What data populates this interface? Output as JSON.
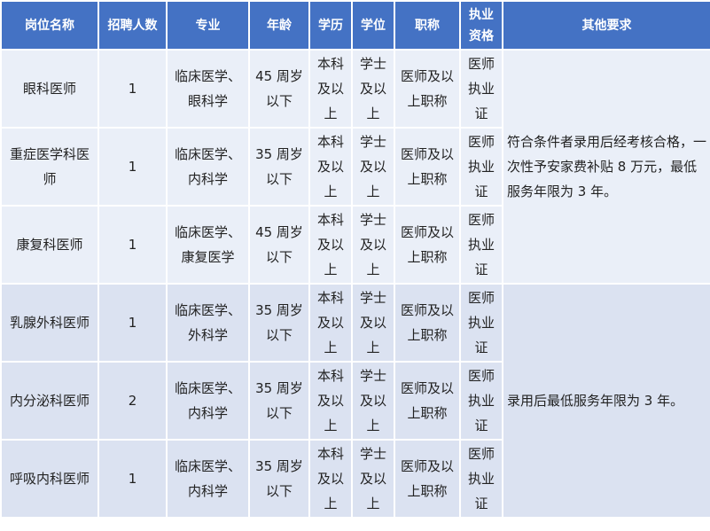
{
  "header_color": "#4472c4",
  "columns": [
    "岗位名称",
    "招聘人数",
    "专业",
    "年龄",
    "学历",
    "学位",
    "职称",
    "执业资格",
    "其他要求"
  ],
  "rows": [
    {
      "position": "眼科医师",
      "count": "1",
      "major": "临床医学、眼科学",
      "age": "45 周岁以下",
      "education": "本科及以上",
      "degree": "学士及以上",
      "title": "医师及以上职称",
      "qualification": "医师执业证"
    },
    {
      "position": "重症医学科医师",
      "count": "1",
      "major": "临床医学、内科学",
      "age": "35 周岁以下",
      "education": "本科及以上",
      "degree": "学士及以上",
      "title": "医师及以上职称",
      "qualification": "医师执业证"
    },
    {
      "position": "康复科医师",
      "count": "1",
      "major": "临床医学、康复医学",
      "age": "45 周岁以下",
      "education": "本科及以上",
      "degree": "学士及以上",
      "title": "医师及以上职称",
      "qualification": "医师执业证"
    },
    {
      "position": "乳腺外科医师",
      "count": "1",
      "major": "临床医学、外科学",
      "age": "35 周岁以下",
      "education": "本科及以上",
      "degree": "学士及以上",
      "title": "医师及以上职称",
      "qualification": "医师执业证"
    },
    {
      "position": "内分泌科医师",
      "count": "2",
      "major": "临床医学、内科学",
      "age": "35 周岁以下",
      "education": "本科及以上",
      "degree": "学士及以上",
      "title": "医师及以上职称",
      "qualification": "医师执业证"
    },
    {
      "position": "呼吸内科医师",
      "count": "1",
      "major": "临床医学、内科学",
      "age": "35 周岁以下",
      "education": "本科及以上",
      "degree": "学士及以上",
      "title": "医师及以上职称",
      "qualification": "医师执业证"
    }
  ],
  "notes": [
    "符合条件者录用后经考核合格，一次性予安家费补贴 8 万元，最低服务年限为 3 年。",
    "录用后最低服务年限为 3 年。"
  ]
}
